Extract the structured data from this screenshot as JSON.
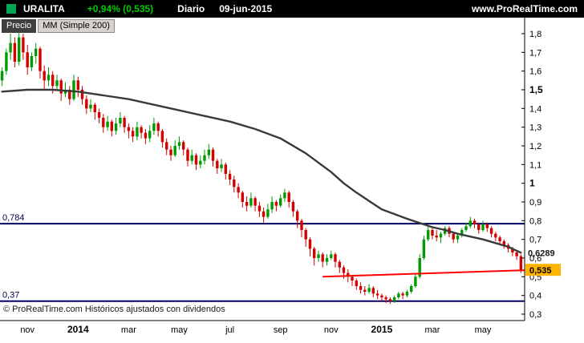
{
  "topbar": {
    "symbol": "URALITA",
    "change": "+0,94% (0,535)",
    "change_color": "#00CC00",
    "timeframe": "Diario",
    "date": "09-jun-2015",
    "site": "www.ProRealTime.com",
    "logo_color": "#00A651"
  },
  "chart_header": {
    "price_label": "Precio",
    "indicator_label": "MM (Simple 200)"
  },
  "footer_note": "© ProRealTime.com  Históricos ajustados con dividendos",
  "chart_data": {
    "type": "candlestick",
    "title": "URALITA Diario 09-jun-2015",
    "grid": false,
    "ylim": [
      0.27,
      1.89
    ],
    "y_ticks": [
      {
        "v": 1.8,
        "label": "1,8",
        "bold": false
      },
      {
        "v": 1.7,
        "label": "1,7",
        "bold": false
      },
      {
        "v": 1.6,
        "label": "1,6",
        "bold": false
      },
      {
        "v": 1.5,
        "label": "1,5",
        "bold": true
      },
      {
        "v": 1.4,
        "label": "1,4",
        "bold": false
      },
      {
        "v": 1.3,
        "label": "1,3",
        "bold": false
      },
      {
        "v": 1.2,
        "label": "1,2",
        "bold": false
      },
      {
        "v": 1.1,
        "label": "1,1",
        "bold": false
      },
      {
        "v": 1.0,
        "label": "1",
        "bold": true
      },
      {
        "v": 0.9,
        "label": "0,9",
        "bold": false
      },
      {
        "v": 0.8,
        "label": "0,8",
        "bold": false
      },
      {
        "v": 0.7,
        "label": "0,7",
        "bold": false
      },
      {
        "v": 0.6,
        "label": "0,6",
        "bold": false
      },
      {
        "v": 0.5,
        "label": "0,5",
        "bold": false
      },
      {
        "v": 0.4,
        "label": "0,4",
        "bold": false
      },
      {
        "v": 0.3,
        "label": "0,3",
        "bold": false
      }
    ],
    "x_labels": [
      {
        "index": 6,
        "label": "nov",
        "bold": false
      },
      {
        "index": 18,
        "label": "2014",
        "bold": true
      },
      {
        "index": 30,
        "label": "mar",
        "bold": false
      },
      {
        "index": 42,
        "label": "may",
        "bold": false
      },
      {
        "index": 54,
        "label": "jul",
        "bold": false
      },
      {
        "index": 66,
        "label": "sep",
        "bold": false
      },
      {
        "index": 78,
        "label": "nov",
        "bold": false
      },
      {
        "index": 90,
        "label": "2015",
        "bold": true
      },
      {
        "index": 102,
        "label": "mar",
        "bold": false
      },
      {
        "index": 114,
        "label": "may",
        "bold": false
      }
    ],
    "colors": {
      "up": "#009B00",
      "down": "#D40000"
    },
    "candles": [
      [
        1.55,
        1.62,
        1.52,
        1.6
      ],
      [
        1.6,
        1.72,
        1.58,
        1.7
      ],
      [
        1.7,
        1.8,
        1.66,
        1.75
      ],
      [
        1.75,
        1.78,
        1.62,
        1.65
      ],
      [
        1.65,
        1.82,
        1.63,
        1.78
      ],
      [
        1.78,
        1.8,
        1.66,
        1.7
      ],
      [
        1.7,
        1.74,
        1.58,
        1.62
      ],
      [
        1.62,
        1.7,
        1.6,
        1.68
      ],
      [
        1.68,
        1.75,
        1.64,
        1.72
      ],
      [
        1.72,
        1.73,
        1.56,
        1.6
      ],
      [
        1.6,
        1.63,
        1.5,
        1.55
      ],
      [
        1.55,
        1.62,
        1.52,
        1.58
      ],
      [
        1.58,
        1.6,
        1.48,
        1.52
      ],
      [
        1.52,
        1.58,
        1.5,
        1.55
      ],
      [
        1.55,
        1.56,
        1.44,
        1.48
      ],
      [
        1.48,
        1.54,
        1.46,
        1.5
      ],
      [
        1.5,
        1.52,
        1.42,
        1.45
      ],
      [
        1.45,
        1.58,
        1.44,
        1.55
      ],
      [
        1.55,
        1.57,
        1.46,
        1.5
      ],
      [
        1.5,
        1.52,
        1.42,
        1.45
      ],
      [
        1.45,
        1.47,
        1.37,
        1.4
      ],
      [
        1.4,
        1.45,
        1.38,
        1.42
      ],
      [
        1.42,
        1.43,
        1.34,
        1.38
      ],
      [
        1.38,
        1.4,
        1.32,
        1.35
      ],
      [
        1.35,
        1.37,
        1.27,
        1.3
      ],
      [
        1.3,
        1.36,
        1.28,
        1.33
      ],
      [
        1.33,
        1.34,
        1.25,
        1.28
      ],
      [
        1.28,
        1.35,
        1.26,
        1.32
      ],
      [
        1.32,
        1.38,
        1.3,
        1.35
      ],
      [
        1.35,
        1.36,
        1.27,
        1.3
      ],
      [
        1.3,
        1.32,
        1.24,
        1.28
      ],
      [
        1.28,
        1.3,
        1.22,
        1.25
      ],
      [
        1.25,
        1.33,
        1.23,
        1.3
      ],
      [
        1.3,
        1.31,
        1.24,
        1.27
      ],
      [
        1.27,
        1.29,
        1.21,
        1.24
      ],
      [
        1.24,
        1.31,
        1.22,
        1.28
      ],
      [
        1.28,
        1.35,
        1.26,
        1.32
      ],
      [
        1.32,
        1.33,
        1.25,
        1.28
      ],
      [
        1.28,
        1.29,
        1.19,
        1.22
      ],
      [
        1.22,
        1.24,
        1.15,
        1.18
      ],
      [
        1.18,
        1.2,
        1.12,
        1.15
      ],
      [
        1.15,
        1.23,
        1.14,
        1.2
      ],
      [
        1.2,
        1.25,
        1.18,
        1.22
      ],
      [
        1.22,
        1.23,
        1.15,
        1.18
      ],
      [
        1.18,
        1.19,
        1.09,
        1.12
      ],
      [
        1.12,
        1.18,
        1.1,
        1.15
      ],
      [
        1.15,
        1.16,
        1.07,
        1.1
      ],
      [
        1.1,
        1.15,
        1.08,
        1.12
      ],
      [
        1.12,
        1.18,
        1.1,
        1.15
      ],
      [
        1.15,
        1.21,
        1.13,
        1.18
      ],
      [
        1.18,
        1.19,
        1.09,
        1.12
      ],
      [
        1.12,
        1.13,
        1.05,
        1.08
      ],
      [
        1.08,
        1.13,
        1.06,
        1.1
      ],
      [
        1.1,
        1.11,
        1.02,
        1.05
      ],
      [
        1.05,
        1.07,
        0.99,
        1.02
      ],
      [
        1.02,
        1.04,
        0.95,
        0.98
      ],
      [
        0.98,
        1.0,
        0.92,
        0.95
      ],
      [
        0.95,
        0.96,
        0.87,
        0.9
      ],
      [
        0.9,
        0.93,
        0.85,
        0.88
      ],
      [
        0.88,
        0.95,
        0.87,
        0.92
      ],
      [
        0.92,
        0.93,
        0.85,
        0.88
      ],
      [
        0.88,
        0.9,
        0.82,
        0.85
      ],
      [
        0.85,
        0.87,
        0.79,
        0.82
      ],
      [
        0.82,
        0.89,
        0.81,
        0.86
      ],
      [
        0.86,
        0.93,
        0.84,
        0.9
      ],
      [
        0.9,
        0.91,
        0.85,
        0.88
      ],
      [
        0.88,
        0.94,
        0.87,
        0.92
      ],
      [
        0.92,
        0.97,
        0.9,
        0.95
      ],
      [
        0.95,
        0.96,
        0.87,
        0.9
      ],
      [
        0.9,
        0.91,
        0.82,
        0.85
      ],
      [
        0.85,
        0.86,
        0.76,
        0.8
      ],
      [
        0.8,
        0.81,
        0.71,
        0.75
      ],
      [
        0.75,
        0.76,
        0.66,
        0.7
      ],
      [
        0.7,
        0.71,
        0.61,
        0.65
      ],
      [
        0.65,
        0.66,
        0.56,
        0.6
      ],
      [
        0.6,
        0.64,
        0.58,
        0.62
      ],
      [
        0.62,
        0.63,
        0.55,
        0.58
      ],
      [
        0.58,
        0.62,
        0.56,
        0.6
      ],
      [
        0.6,
        0.64,
        0.59,
        0.62
      ],
      [
        0.62,
        0.63,
        0.55,
        0.58
      ],
      [
        0.58,
        0.59,
        0.52,
        0.55
      ],
      [
        0.55,
        0.56,
        0.49,
        0.52
      ],
      [
        0.52,
        0.54,
        0.47,
        0.5
      ],
      [
        0.5,
        0.51,
        0.45,
        0.48
      ],
      [
        0.48,
        0.49,
        0.43,
        0.45
      ],
      [
        0.45,
        0.47,
        0.41,
        0.43
      ],
      [
        0.43,
        0.45,
        0.4,
        0.42
      ],
      [
        0.42,
        0.46,
        0.41,
        0.44
      ],
      [
        0.44,
        0.45,
        0.39,
        0.41
      ],
      [
        0.41,
        0.43,
        0.38,
        0.4
      ],
      [
        0.4,
        0.41,
        0.37,
        0.39
      ],
      [
        0.39,
        0.4,
        0.36,
        0.38
      ],
      [
        0.38,
        0.39,
        0.355,
        0.37
      ],
      [
        0.37,
        0.4,
        0.36,
        0.39
      ],
      [
        0.39,
        0.42,
        0.38,
        0.41
      ],
      [
        0.41,
        0.42,
        0.38,
        0.4
      ],
      [
        0.4,
        0.43,
        0.39,
        0.42
      ],
      [
        0.42,
        0.46,
        0.41,
        0.45
      ],
      [
        0.45,
        0.52,
        0.44,
        0.5
      ],
      [
        0.5,
        0.62,
        0.49,
        0.6
      ],
      [
        0.6,
        0.72,
        0.59,
        0.7
      ],
      [
        0.7,
        0.77,
        0.69,
        0.75
      ],
      [
        0.75,
        0.76,
        0.7,
        0.72
      ],
      [
        0.72,
        0.75,
        0.69,
        0.71
      ],
      [
        0.71,
        0.74,
        0.68,
        0.73
      ],
      [
        0.73,
        0.77,
        0.72,
        0.76
      ],
      [
        0.76,
        0.77,
        0.71,
        0.73
      ],
      [
        0.73,
        0.74,
        0.68,
        0.7
      ],
      [
        0.7,
        0.73,
        0.68,
        0.72
      ],
      [
        0.72,
        0.76,
        0.71,
        0.75
      ],
      [
        0.75,
        0.79,
        0.74,
        0.77
      ],
      [
        0.77,
        0.82,
        0.76,
        0.8
      ],
      [
        0.8,
        0.81,
        0.76,
        0.78
      ],
      [
        0.78,
        0.79,
        0.73,
        0.75
      ],
      [
        0.75,
        0.8,
        0.74,
        0.78
      ],
      [
        0.78,
        0.79,
        0.74,
        0.76
      ],
      [
        0.76,
        0.77,
        0.71,
        0.73
      ],
      [
        0.73,
        0.74,
        0.69,
        0.71
      ],
      [
        0.71,
        0.72,
        0.67,
        0.69
      ],
      [
        0.69,
        0.7,
        0.65,
        0.67
      ],
      [
        0.67,
        0.68,
        0.63,
        0.65
      ],
      [
        0.65,
        0.66,
        0.61,
        0.63
      ],
      [
        0.63,
        0.64,
        0.59,
        0.61
      ],
      [
        0.61,
        0.62,
        0.52,
        0.535
      ]
    ],
    "ma200": {
      "label": "MM (Simple 200)",
      "color": "#3a3a3a",
      "last_value": 0.6289,
      "last_value_label": "0,6289",
      "points": [
        [
          0,
          1.49
        ],
        [
          6,
          1.5
        ],
        [
          12,
          1.5
        ],
        [
          18,
          1.49
        ],
        [
          24,
          1.47
        ],
        [
          30,
          1.45
        ],
        [
          36,
          1.42
        ],
        [
          42,
          1.39
        ],
        [
          48,
          1.36
        ],
        [
          54,
          1.33
        ],
        [
          60,
          1.29
        ],
        [
          66,
          1.24
        ],
        [
          72,
          1.16
        ],
        [
          78,
          1.06
        ],
        [
          81,
          1.0
        ],
        [
          84,
          0.95
        ],
        [
          90,
          0.86
        ],
        [
          96,
          0.81
        ],
        [
          100,
          0.78
        ],
        [
          102,
          0.765
        ],
        [
          105,
          0.75
        ],
        [
          108,
          0.73
        ],
        [
          111,
          0.715
        ],
        [
          114,
          0.7
        ],
        [
          117,
          0.68
        ],
        [
          120,
          0.66
        ],
        [
          123,
          0.6289
        ]
      ]
    },
    "h_lines": [
      {
        "value": 0.784,
        "label": "0,784",
        "color": "#000066",
        "label_color": "#00004d"
      },
      {
        "value": 0.37,
        "label": "0,37",
        "color": "#000066",
        "label_color": "#00004d"
      }
    ],
    "trend_line": {
      "x1_index": 76,
      "y1": 0.5,
      "x2_index": 124,
      "y2": 0.535,
      "color": "#FF0000"
    },
    "last_price": {
      "value": 0.535,
      "label": "0,535",
      "badge_color": "#FFB400",
      "text_color": "#000000"
    }
  }
}
